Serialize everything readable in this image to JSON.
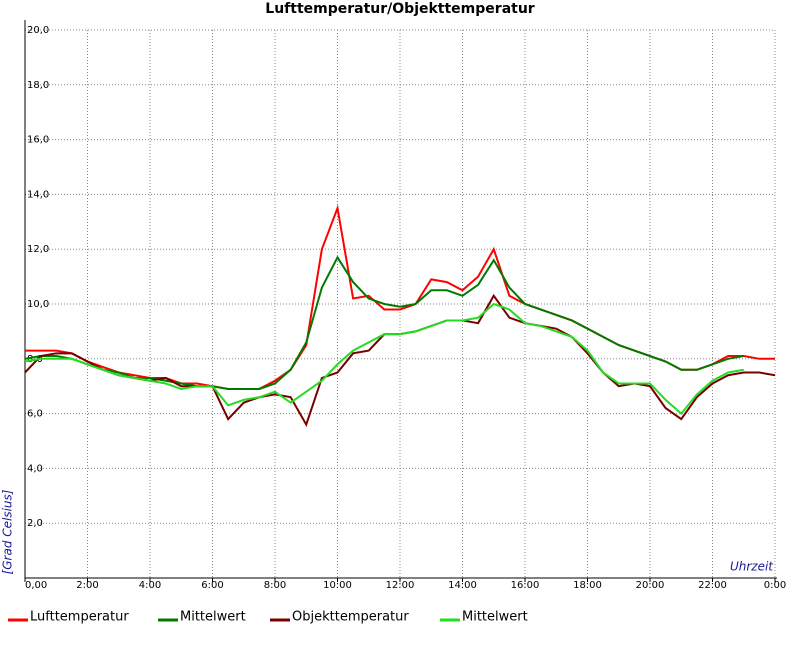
{
  "chart_data": {
    "type": "line",
    "title": "Lufttemperatur/Objekttemperatur",
    "x_label": "Uhrzeit",
    "y_label": "[Grad Celsius]",
    "x": [
      0,
      0.5,
      1,
      1.5,
      2,
      2.5,
      3,
      3.5,
      4,
      4.5,
      5,
      5.5,
      6,
      6.5,
      7,
      7.5,
      8,
      8.5,
      9,
      9.5,
      10,
      10.5,
      11,
      11.5,
      12,
      12.5,
      13,
      13.5,
      14,
      14.5,
      15,
      15.5,
      16,
      16.5,
      17,
      17.5,
      18,
      18.5,
      19,
      19.5,
      20,
      20.5,
      21,
      21.5,
      22,
      22.5,
      23,
      23.5,
      24
    ],
    "series": [
      {
        "name": "Lufttemperatur",
        "color": "#ff0000",
        "values": [
          8.3,
          8.3,
          8.3,
          8.2,
          7.9,
          7.7,
          7.5,
          7.4,
          7.3,
          7.3,
          7.1,
          7.1,
          7.0,
          6.9,
          6.9,
          6.9,
          7.2,
          7.6,
          8.5,
          12.0,
          13.5,
          10.2,
          10.3,
          9.8,
          9.8,
          10.0,
          10.9,
          10.8,
          10.5,
          11.0,
          12.0,
          10.3,
          10.0,
          9.8,
          9.6,
          9.4,
          9.1,
          8.8,
          8.5,
          8.3,
          8.1,
          7.9,
          7.6,
          7.6,
          7.8,
          8.1,
          8.1,
          8.0,
          8.0
        ]
      },
      {
        "name": "Mittelwert",
        "color": "#007a00",
        "values": [
          8.0,
          8.1,
          8.1,
          8.0,
          7.8,
          7.6,
          7.5,
          7.3,
          7.3,
          7.2,
          7.1,
          7.0,
          7.0,
          6.9,
          6.9,
          6.9,
          7.1,
          7.6,
          8.6,
          10.6,
          11.7,
          10.8,
          10.2,
          10.0,
          9.9,
          10.0,
          10.5,
          10.5,
          10.3,
          10.7,
          11.6,
          10.6,
          10.0,
          9.8,
          9.6,
          9.4,
          9.1,
          8.8,
          8.5,
          8.3,
          8.1,
          7.9,
          7.6,
          7.6,
          7.8,
          8.0,
          8.1,
          null,
          null
        ]
      },
      {
        "name": "Objekttemperatur",
        "color": "#7a0000",
        "values": [
          7.5,
          8.1,
          8.2,
          8.2,
          7.9,
          7.6,
          7.4,
          7.3,
          7.2,
          7.3,
          7.0,
          7.0,
          7.0,
          5.8,
          6.4,
          6.6,
          6.7,
          6.6,
          5.6,
          7.3,
          7.5,
          8.2,
          8.3,
          8.9,
          8.9,
          9.0,
          9.2,
          9.4,
          9.4,
          9.3,
          10.3,
          9.5,
          9.3,
          9.2,
          9.1,
          8.8,
          8.2,
          7.5,
          7.0,
          7.1,
          7.0,
          6.2,
          5.8,
          6.6,
          7.1,
          7.4,
          7.5,
          7.5,
          7.4
        ]
      },
      {
        "name": "Mittelwert",
        "color": "#22dd22",
        "values": [
          7.9,
          8.0,
          8.0,
          8.0,
          7.8,
          7.6,
          7.4,
          7.3,
          7.2,
          7.1,
          6.9,
          7.0,
          7.0,
          6.3,
          6.5,
          6.6,
          6.8,
          6.4,
          6.8,
          7.2,
          7.8,
          8.3,
          8.6,
          8.9,
          8.9,
          9.0,
          9.2,
          9.4,
          9.4,
          9.5,
          10.0,
          9.8,
          9.3,
          9.2,
          9.0,
          8.8,
          8.3,
          7.5,
          7.1,
          7.1,
          7.1,
          6.5,
          6.0,
          6.7,
          7.2,
          7.5,
          7.6,
          null,
          null
        ]
      }
    ],
    "xlim": [
      0,
      24
    ],
    "xticks": [
      {
        "value": 0,
        "label": "0,00"
      },
      {
        "value": 2,
        "label": "2:00"
      },
      {
        "value": 4,
        "label": "4:00"
      },
      {
        "value": 6,
        "label": "6:00"
      },
      {
        "value": 8,
        "label": "8:00"
      },
      {
        "value": 10,
        "label": "10:00"
      },
      {
        "value": 12,
        "label": "12:00"
      },
      {
        "value": 14,
        "label": "14:00"
      },
      {
        "value": 16,
        "label": "16:00"
      },
      {
        "value": 18,
        "label": "18:00"
      },
      {
        "value": 20,
        "label": "20:00"
      },
      {
        "value": 22,
        "label": "22:00"
      },
      {
        "value": 24,
        "label": "0:00"
      }
    ],
    "ylim": [
      0,
      20
    ],
    "yticks": [
      {
        "value": 2,
        "label": "2,0"
      },
      {
        "value": 4,
        "label": "4,0"
      },
      {
        "value": 6,
        "label": "6,0"
      },
      {
        "value": 8,
        "label": "8,0"
      },
      {
        "value": 10,
        "label": "10,0"
      },
      {
        "value": 12,
        "label": "12,0"
      },
      {
        "value": 14,
        "label": "14,0"
      },
      {
        "value": 16,
        "label": "16,0"
      },
      {
        "value": 18,
        "label": "18,0"
      },
      {
        "value": 20,
        "label": "20,0"
      }
    ],
    "grid": true,
    "legend": "bottom"
  }
}
